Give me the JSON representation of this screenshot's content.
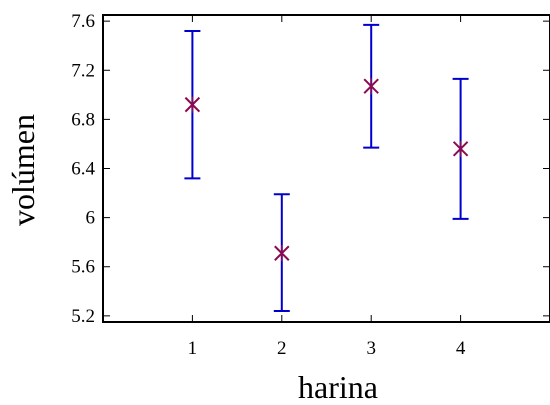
{
  "chart_data": {
    "type": "scatter",
    "title": "",
    "xlabel": "harina",
    "ylabel": "volúmen",
    "x": [
      1,
      2,
      3,
      4
    ],
    "xticks": [
      "1",
      "2",
      "3",
      "4"
    ],
    "xlim": [
      0,
      5
    ],
    "ylim": [
      5.15,
      7.65
    ],
    "yticks": [
      "5.2",
      "5.6",
      "6",
      "6.4",
      "6.8",
      "7.2",
      "7.6"
    ],
    "grid": false,
    "legend": "none",
    "series": [
      {
        "means": [
          6.92,
          5.71,
          7.07,
          6.56
        ],
        "lower": [
          6.32,
          5.24,
          6.57,
          5.99
        ],
        "upper": [
          7.52,
          6.19,
          7.57,
          7.13
        ],
        "marker_color": "#8b0a50",
        "errorbar_color": "#0000cc"
      }
    ]
  }
}
